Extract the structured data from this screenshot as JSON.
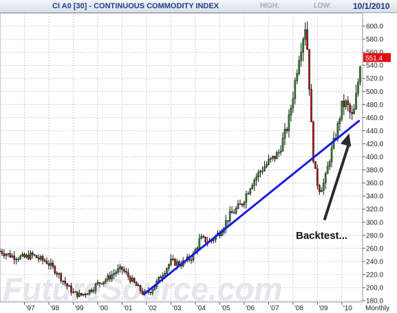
{
  "header": {
    "title": "CI A0 [30] - CONTINUOUS COMMODITY INDEX",
    "high_label": "HIGH:",
    "low_label": "LOW:",
    "date": "10/1/2010"
  },
  "watermark": "FutureSource.com",
  "colors": {
    "up_candle": "#2e9a2e",
    "down_candle": "#d01010",
    "trendline": "#1a1ae0",
    "arrow": "#2a2a2a",
    "price_badge": "#e01010",
    "grid": "#c8ccd6"
  },
  "chart_data": {
    "type": "candlestick",
    "frequency": "Monthly",
    "x_ticks": [
      "'97",
      "'98",
      "'99",
      "'00",
      "'01",
      "'02",
      "'03",
      "'04",
      "'05",
      "'06",
      "'07",
      "'08",
      "'09",
      "'10"
    ],
    "y_ticks": [
      "180.0",
      "200.0",
      "220.0",
      "240.0",
      "260.0",
      "280.0",
      "300.0",
      "320.0",
      "340.0",
      "360.0",
      "380.0",
      "400.0",
      "420.0",
      "440.0",
      "460.0",
      "480.0",
      "500.0",
      "520.0",
      "540.0",
      "560.0",
      "580.0",
      "600.0"
    ],
    "ylim": [
      178,
      620
    ],
    "xlim": [
      1996.0,
      2010.85
    ],
    "last_price": "551.4",
    "annotation": "Backtest...",
    "key_points": [
      {
        "t": 1996.0,
        "v": 256
      },
      {
        "t": 1996.5,
        "v": 248
      },
      {
        "t": 1997.0,
        "v": 246
      },
      {
        "t": 1997.3,
        "v": 250
      },
      {
        "t": 1997.6,
        "v": 244
      },
      {
        "t": 1997.9,
        "v": 240
      },
      {
        "t": 1998.3,
        "v": 225
      },
      {
        "t": 1998.7,
        "v": 205
      },
      {
        "t": 1999.0,
        "v": 192
      },
      {
        "t": 1999.3,
        "v": 188
      },
      {
        "t": 1999.7,
        "v": 196
      },
      {
        "t": 2000.0,
        "v": 206
      },
      {
        "t": 2000.4,
        "v": 214
      },
      {
        "t": 2000.8,
        "v": 226
      },
      {
        "t": 2001.0,
        "v": 228
      },
      {
        "t": 2001.3,
        "v": 215
      },
      {
        "t": 2001.7,
        "v": 198
      },
      {
        "t": 2001.9,
        "v": 190
      },
      {
        "t": 2002.2,
        "v": 196
      },
      {
        "t": 2002.6,
        "v": 218
      },
      {
        "t": 2003.0,
        "v": 240
      },
      {
        "t": 2003.4,
        "v": 236
      },
      {
        "t": 2003.9,
        "v": 248
      },
      {
        "t": 2004.2,
        "v": 275
      },
      {
        "t": 2004.6,
        "v": 270
      },
      {
        "t": 2005.0,
        "v": 285
      },
      {
        "t": 2005.4,
        "v": 310
      },
      {
        "t": 2005.9,
        "v": 328
      },
      {
        "t": 2006.3,
        "v": 360
      },
      {
        "t": 2006.7,
        "v": 380
      },
      {
        "t": 2007.0,
        "v": 392
      },
      {
        "t": 2007.4,
        "v": 405
      },
      {
        "t": 2007.8,
        "v": 450
      },
      {
        "t": 2008.0,
        "v": 495
      },
      {
        "t": 2008.25,
        "v": 555
      },
      {
        "t": 2008.5,
        "v": 600
      },
      {
        "t": 2008.6,
        "v": 560
      },
      {
        "t": 2008.8,
        "v": 410
      },
      {
        "t": 2008.95,
        "v": 365
      },
      {
        "t": 2009.1,
        "v": 350
      },
      {
        "t": 2009.3,
        "v": 362
      },
      {
        "t": 2009.5,
        "v": 398
      },
      {
        "t": 2009.8,
        "v": 440
      },
      {
        "t": 2010.0,
        "v": 478
      },
      {
        "t": 2010.2,
        "v": 482
      },
      {
        "t": 2010.4,
        "v": 460
      },
      {
        "t": 2010.5,
        "v": 470
      },
      {
        "t": 2010.65,
        "v": 510
      },
      {
        "t": 2010.8,
        "v": 551.4
      }
    ],
    "trendline": {
      "from": {
        "t": 2001.9,
        "v": 190
      },
      "to": {
        "t": 2010.7,
        "v": 455
      }
    },
    "arrow": {
      "from": {
        "t": 2009.3,
        "v": 305
      },
      "to": {
        "t": 2010.3,
        "v": 436
      }
    }
  }
}
